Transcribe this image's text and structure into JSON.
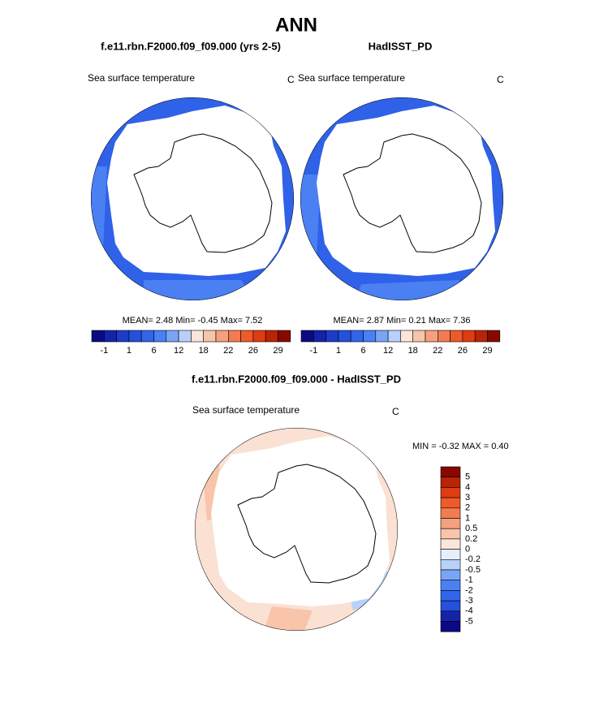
{
  "title": "ANN",
  "panels": [
    {
      "header": "f.e11.rbn.F2000.f09_f09.000 (yrs 2-5)",
      "variable": "Sea surface temperature",
      "units": "C",
      "stats": "MEAN=   2.48   Min=   -0.45   Max=   7.52"
    },
    {
      "header": "HadISST_PD",
      "variable": "Sea surface temperature",
      "units": "C",
      "stats": "MEAN=   2.87   Min=   0.21   Max=   7.36"
    }
  ],
  "colorbar": {
    "labels": [
      "-1",
      "1",
      "6",
      "12",
      "18",
      "22",
      "26",
      "29"
    ],
    "colors": [
      "#0a0a84",
      "#1424a8",
      "#1c3cc8",
      "#2450dc",
      "#3066ec",
      "#4a80f2",
      "#7aa4f6",
      "#b8d0fa",
      "#fbe6da",
      "#f8c4aa",
      "#f5a07e",
      "#f27c52",
      "#ee5a2c",
      "#e03c12",
      "#b82406",
      "#880800"
    ]
  },
  "difference": {
    "header": "f.e11.rbn.F2000.f09_f09.000 - HadISST_PD",
    "variable": "Sea surface temperature",
    "units": "C",
    "stats": "MIN =  -0.32 MAX =   0.40",
    "colorbar": {
      "labels": [
        "5",
        "4",
        "3",
        "2",
        "1",
        "0.5",
        "0.2",
        "0",
        "-0.2",
        "-0.5",
        "-1",
        "-2",
        "-3",
        "-4",
        "-5"
      ],
      "colors": [
        "#880800",
        "#b82406",
        "#e03c12",
        "#ee5a2c",
        "#f27c52",
        "#f5a07e",
        "#f8c4aa",
        "#fbe6da",
        "#e6eefc",
        "#b8d0fa",
        "#7aa4f6",
        "#4a80f2",
        "#3066ec",
        "#2450dc",
        "#1424a8",
        "#0a0a84"
      ]
    }
  }
}
